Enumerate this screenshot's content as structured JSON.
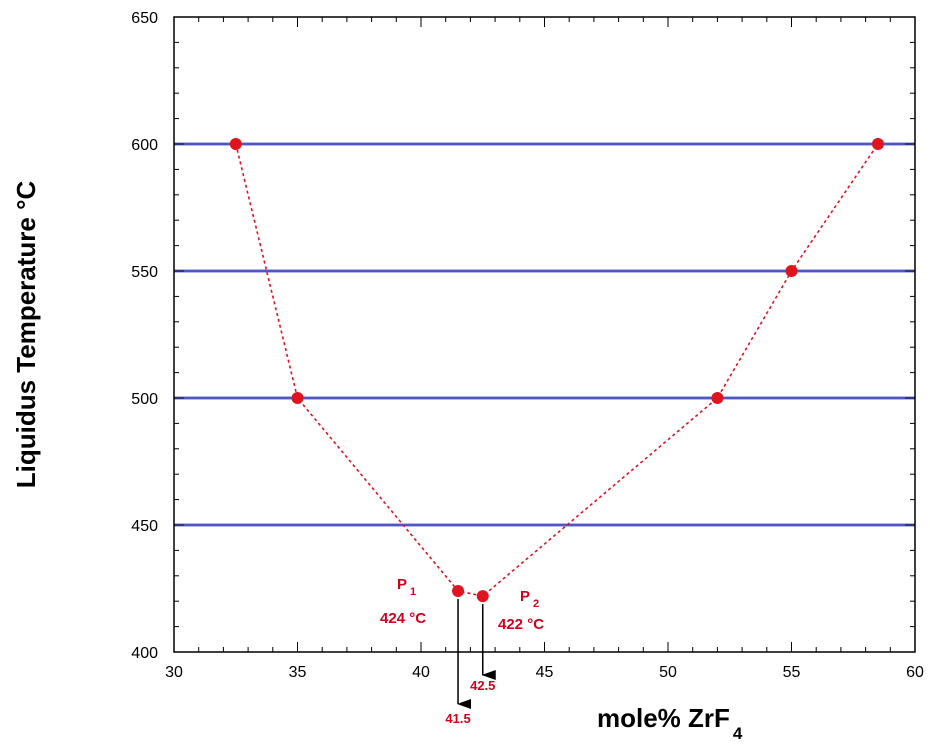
{
  "chart_data": {
    "type": "line",
    "title": "",
    "xlabel": "mole% ZrF",
    "xlabel_sub": "4",
    "ylabel": "Liquidus Temperature °C",
    "xlim": [
      30,
      60
    ],
    "ylim": [
      400,
      650
    ],
    "x_ticks": [
      30,
      35,
      40,
      45,
      50,
      55,
      60
    ],
    "y_ticks": [
      400,
      450,
      500,
      550,
      600,
      650
    ],
    "x_tick_labels": [
      "30",
      "35",
      "40",
      "45",
      "50",
      "55",
      "60"
    ],
    "y_tick_labels": [
      "400",
      "450",
      "500",
      "550",
      "600",
      "650"
    ],
    "isotherms": [
      450,
      500,
      550,
      600
    ],
    "grid": false,
    "series": [
      {
        "x": [
          32.5,
          35,
          41.5,
          42.5,
          52,
          55,
          58.5
        ],
        "y": [
          600,
          500,
          424,
          422,
          500,
          550,
          600
        ],
        "color": "#e0141e",
        "style": "dotted"
      }
    ],
    "annotations": [
      {
        "label": "P",
        "sub": "1",
        "value_text": "424 °C",
        "x": 41.5,
        "y": 424
      },
      {
        "label": "P",
        "sub": "2",
        "value_text": "422 °C",
        "x": 42.5,
        "y": 422
      }
    ],
    "arrows": [
      {
        "x": 41.5,
        "label": "41.5"
      },
      {
        "x": 42.5,
        "label": "42.5"
      }
    ],
    "colors": {
      "isotherm": "#6a6fd8",
      "series": "#e0141e",
      "annotation": "#d0021b",
      "axis": "#000000"
    }
  }
}
